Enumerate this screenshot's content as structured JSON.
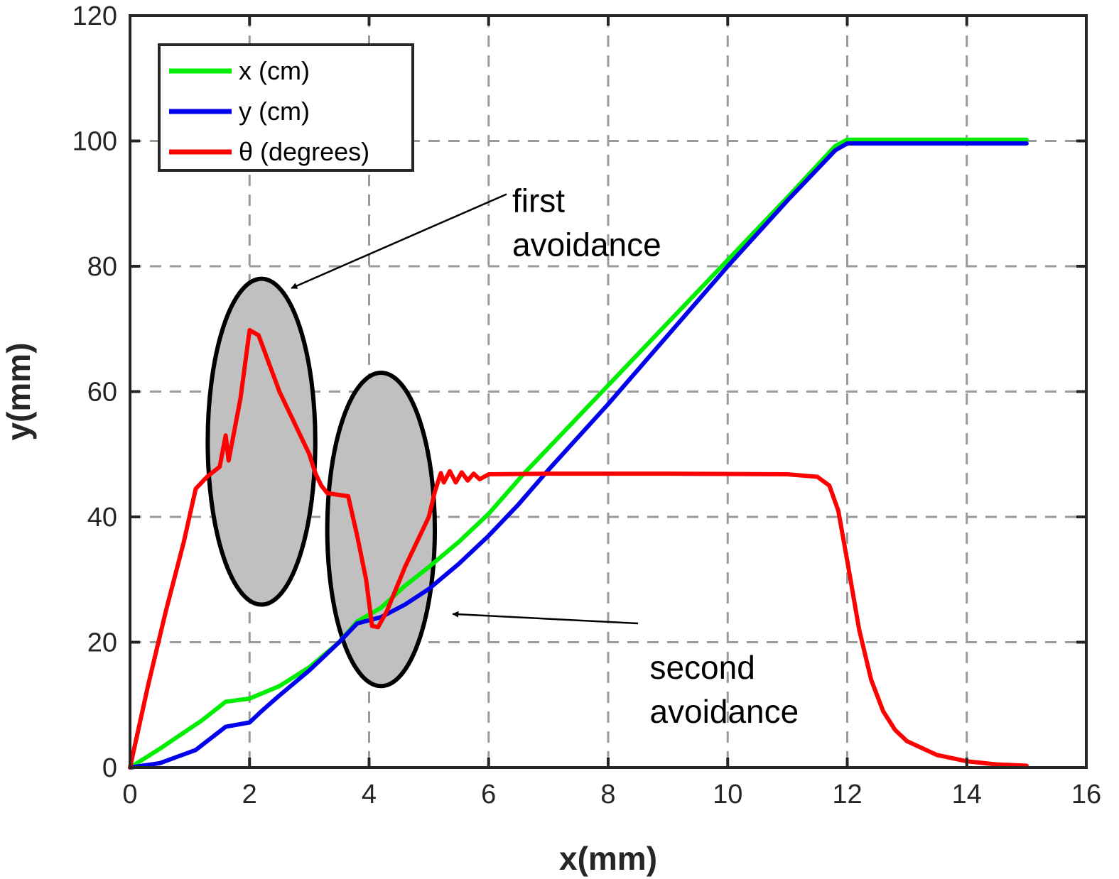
{
  "chart_data": {
    "type": "line",
    "xlabel": "x(mm)",
    "ylabel": "y(mm)",
    "xlim": [
      0,
      16
    ],
    "ylim": [
      0,
      120
    ],
    "xticks": [
      0,
      2,
      4,
      6,
      8,
      10,
      12,
      14,
      16
    ],
    "yticks": [
      0,
      20,
      40,
      60,
      80,
      100,
      120
    ],
    "grid": true,
    "legend_position": "top-left",
    "series": [
      {
        "name": "x (cm)",
        "color": "#00ee00",
        "points": [
          [
            0,
            0
          ],
          [
            0.5,
            3
          ],
          [
            1.2,
            7.5
          ],
          [
            1.6,
            10.5
          ],
          [
            2,
            11
          ],
          [
            2.5,
            13
          ],
          [
            3,
            16
          ],
          [
            3.5,
            20
          ],
          [
            3.8,
            23.3
          ],
          [
            4.2,
            25.5
          ],
          [
            4.6,
            29
          ],
          [
            5,
            32
          ],
          [
            5.5,
            36
          ],
          [
            6,
            40.5
          ],
          [
            6.6,
            47
          ],
          [
            7,
            51
          ],
          [
            8,
            61
          ],
          [
            9,
            71
          ],
          [
            10,
            81
          ],
          [
            11,
            91
          ],
          [
            11.8,
            99.2
          ],
          [
            12,
            100.2
          ],
          [
            13,
            100.2
          ],
          [
            15,
            100.2
          ]
        ]
      },
      {
        "name": "y (cm)",
        "color": "#0000ee",
        "points": [
          [
            0,
            0
          ],
          [
            0.5,
            0.7
          ],
          [
            1.1,
            2.8
          ],
          [
            1.6,
            6.5
          ],
          [
            2,
            7.2
          ],
          [
            2.2,
            9
          ],
          [
            2.5,
            11.5
          ],
          [
            3,
            15.5
          ],
          [
            3.5,
            20
          ],
          [
            3.8,
            23
          ],
          [
            4.2,
            24
          ],
          [
            4.6,
            26
          ],
          [
            5,
            28.5
          ],
          [
            5.5,
            32.5
          ],
          [
            6,
            37
          ],
          [
            6.5,
            42
          ],
          [
            7,
            47.5
          ],
          [
            8,
            58
          ],
          [
            9,
            69
          ],
          [
            10,
            80
          ],
          [
            11,
            90.5
          ],
          [
            11.8,
            98.5
          ],
          [
            12,
            99.6
          ],
          [
            13,
            99.6
          ],
          [
            15,
            99.6
          ]
        ]
      },
      {
        "name": "θ (degrees)",
        "color": "#ff0000",
        "points": [
          [
            0,
            0
          ],
          [
            0.3,
            13
          ],
          [
            0.6,
            25
          ],
          [
            0.9,
            36
          ],
          [
            1.1,
            44.5
          ],
          [
            1.3,
            46.5
          ],
          [
            1.5,
            48
          ],
          [
            1.6,
            53
          ],
          [
            1.65,
            49
          ],
          [
            1.75,
            54
          ],
          [
            1.85,
            59
          ],
          [
            2,
            69.8
          ],
          [
            2.15,
            69
          ],
          [
            2.5,
            60
          ],
          [
            3,
            50
          ],
          [
            3.1,
            47
          ],
          [
            3.2,
            45
          ],
          [
            3.3,
            43.8
          ],
          [
            3.5,
            43.5
          ],
          [
            3.65,
            43.3
          ],
          [
            3.8,
            37
          ],
          [
            3.95,
            30
          ],
          [
            4.05,
            22.6
          ],
          [
            4.15,
            22.4
          ],
          [
            4.3,
            25
          ],
          [
            4.6,
            32
          ],
          [
            5,
            40
          ],
          [
            5.1,
            44
          ],
          [
            5.2,
            47
          ],
          [
            5.25,
            45.5
          ],
          [
            5.35,
            47.3
          ],
          [
            5.45,
            45.5
          ],
          [
            5.55,
            47.1
          ],
          [
            5.65,
            45.8
          ],
          [
            5.75,
            46.9
          ],
          [
            5.85,
            46
          ],
          [
            6,
            46.8
          ],
          [
            7,
            46.9
          ],
          [
            9,
            46.9
          ],
          [
            11,
            46.8
          ],
          [
            11.5,
            46.4
          ],
          [
            11.7,
            45
          ],
          [
            11.85,
            41
          ],
          [
            12,
            33
          ],
          [
            12.2,
            22
          ],
          [
            12.4,
            14
          ],
          [
            12.6,
            9
          ],
          [
            12.8,
            6
          ],
          [
            13,
            4.2
          ],
          [
            13.5,
            2
          ],
          [
            14,
            1
          ],
          [
            14.5,
            0.5
          ],
          [
            15,
            0.3
          ]
        ]
      }
    ],
    "obstacles": [
      {
        "cx": 2.2,
        "cy": 52,
        "rx": 0.9,
        "ry": 26
      },
      {
        "cx": 4.2,
        "cy": 38,
        "rx": 0.9,
        "ry": 25
      }
    ],
    "annotations": [
      {
        "lines": [
          "first",
          "avoidance"
        ],
        "text_pos": [
          6.3,
          90.5
        ],
        "arrow_from": [
          6.3,
          91.5
        ],
        "arrow_to": [
          2.7,
          76.5
        ]
      },
      {
        "lines": [
          "second",
          "avoidance"
        ],
        "text_pos": [
          8.6,
          16
        ],
        "arrow_from": [
          8.5,
          23
        ],
        "arrow_to": [
          5.4,
          24.5
        ]
      }
    ]
  }
}
